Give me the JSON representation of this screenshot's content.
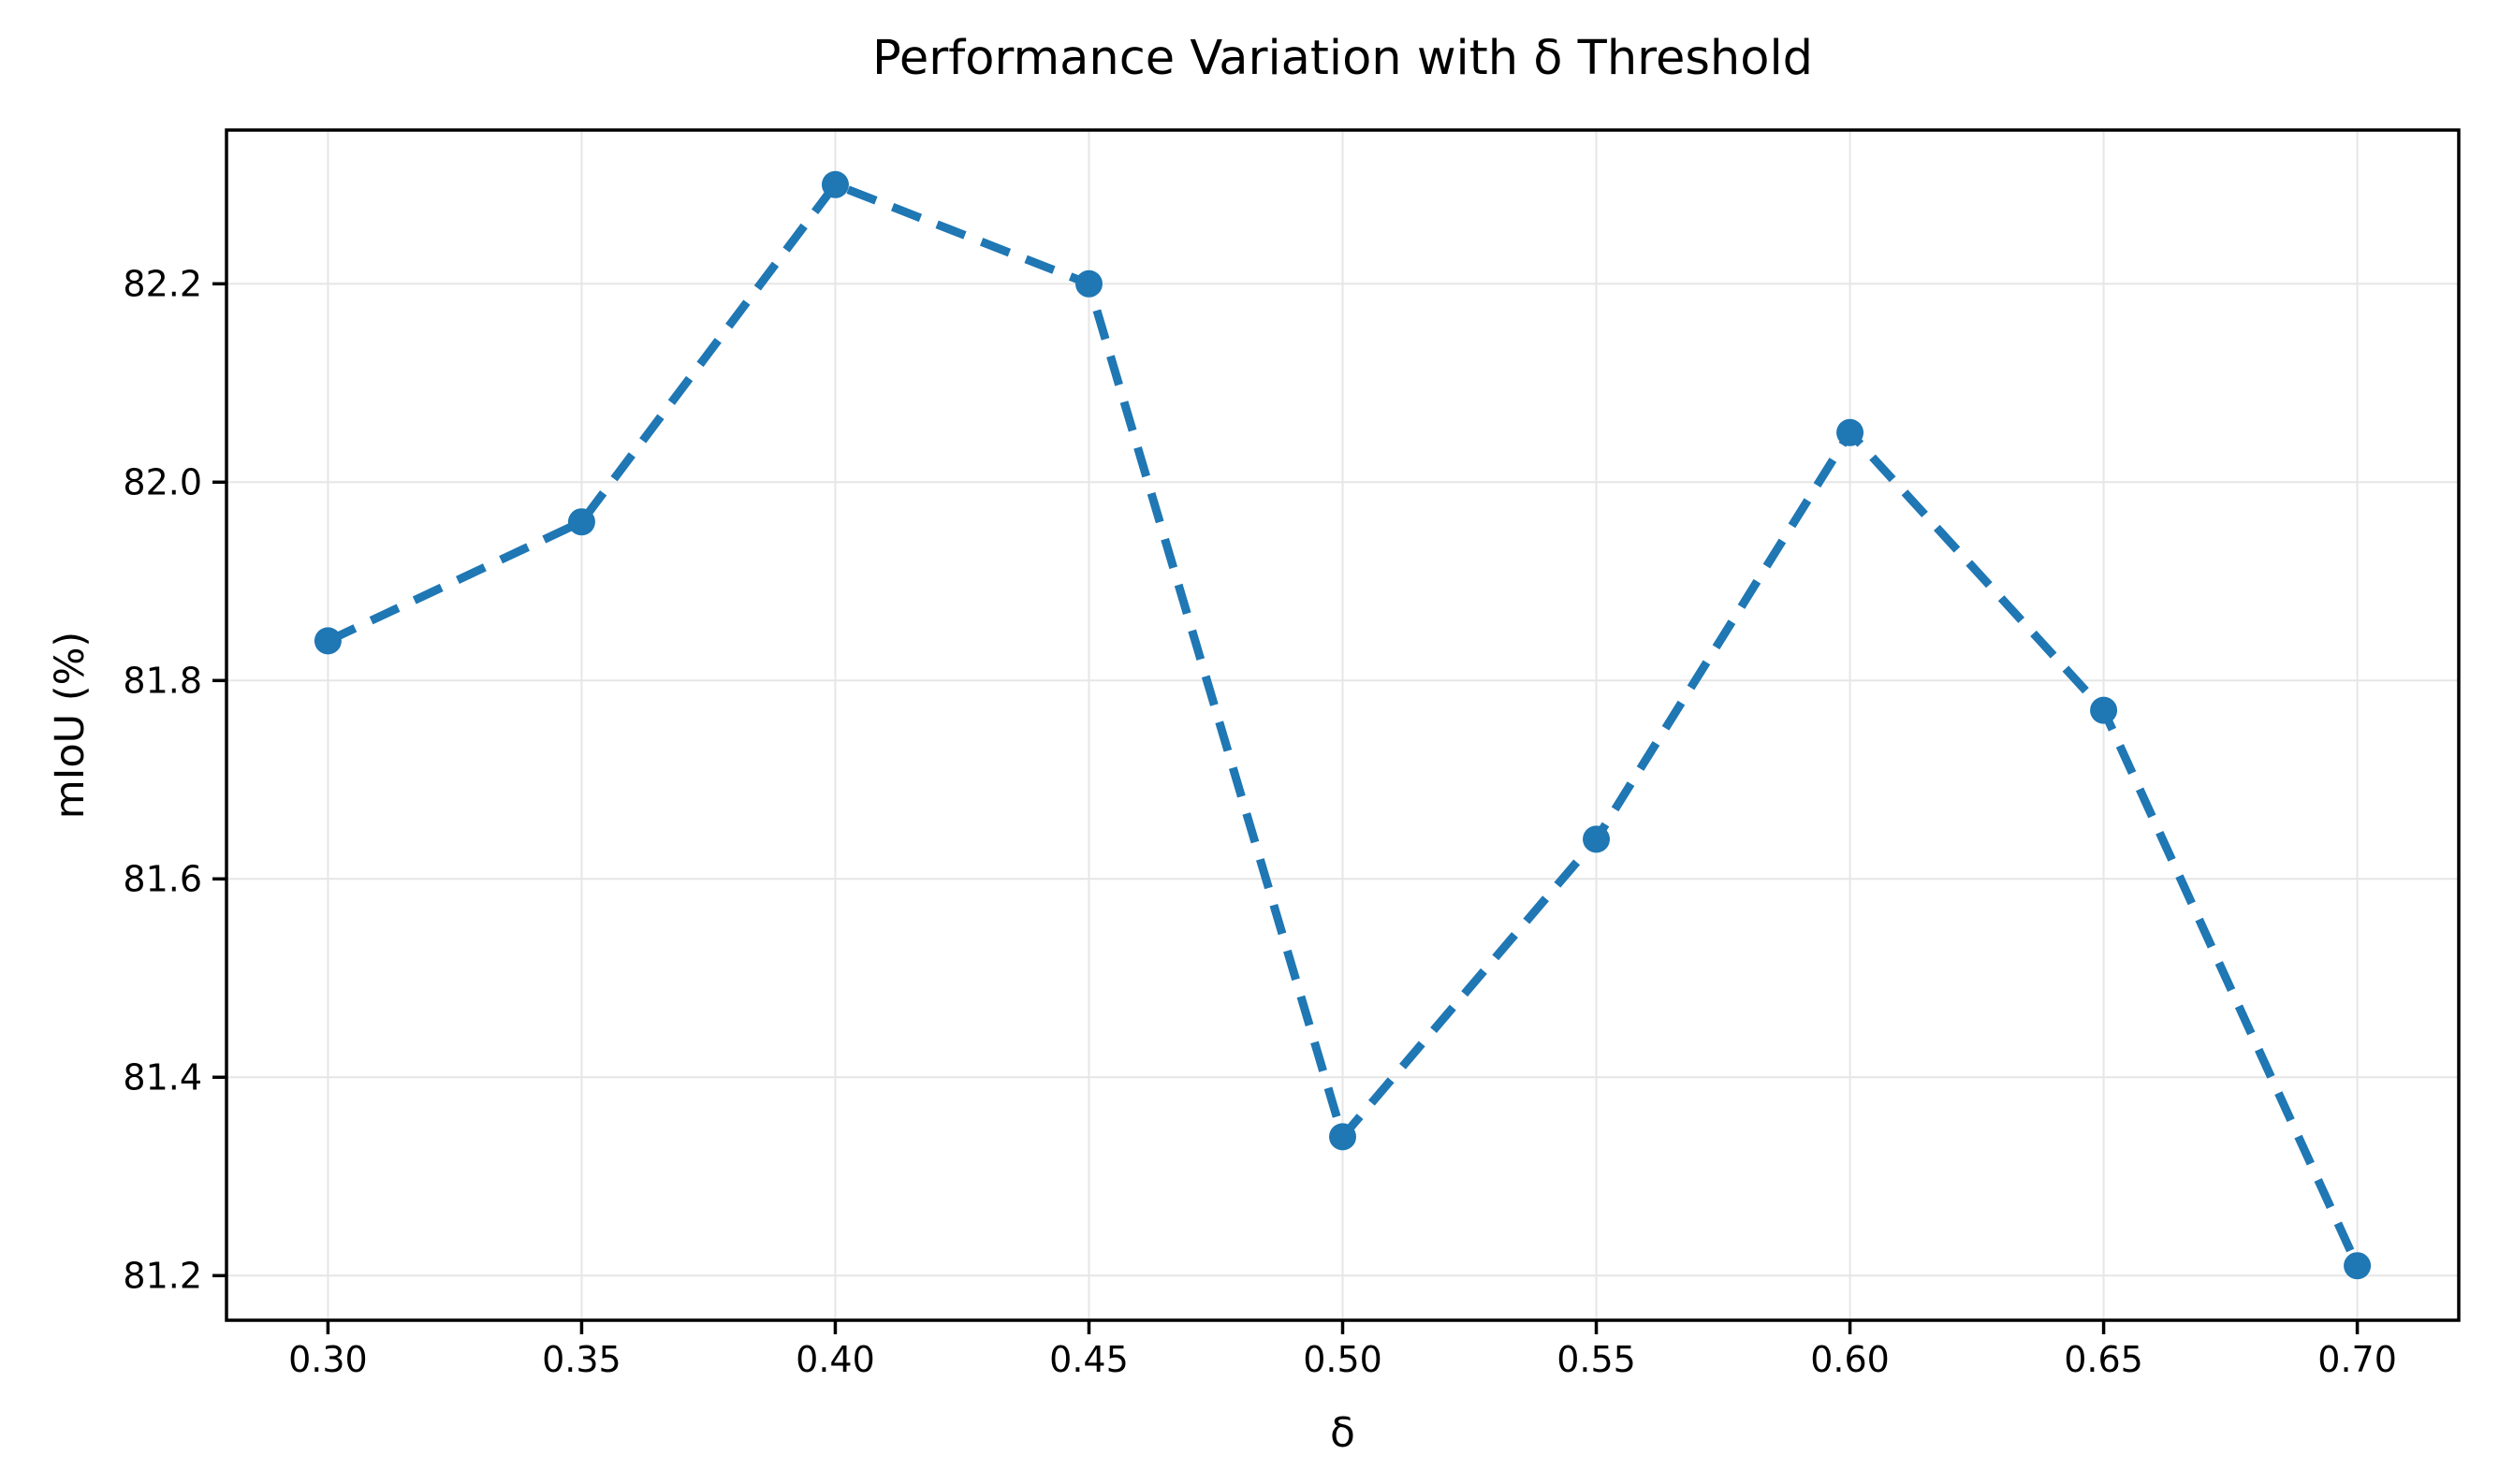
{
  "chart_data": {
    "type": "line",
    "title": "Performance Variation with δ Threshold",
    "xlabel": "δ",
    "ylabel": "mIoU (%)",
    "x": [
      0.3,
      0.35,
      0.4,
      0.45,
      0.5,
      0.55,
      0.6,
      0.65,
      0.7
    ],
    "series": [
      {
        "name": "mIoU",
        "values": [
          81.84,
          81.96,
          82.3,
          82.2,
          81.34,
          81.64,
          82.05,
          81.77,
          81.21
        ]
      }
    ],
    "xlim": [
      0.28,
      0.72
    ],
    "ylim": [
      81.155,
      82.355
    ],
    "xtick_values": [
      0.3,
      0.35,
      0.4,
      0.45,
      0.5,
      0.55,
      0.6,
      0.65,
      0.7
    ],
    "xtick_labels": [
      "0.30",
      "0.35",
      "0.40",
      "0.45",
      "0.50",
      "0.55",
      "0.60",
      "0.65",
      "0.70"
    ],
    "ytick_values": [
      81.2,
      81.4,
      81.6,
      81.8,
      82.0,
      82.2
    ],
    "ytick_labels": [
      "81.2",
      "81.4",
      "81.6",
      "81.8",
      "82.0",
      "82.2"
    ],
    "grid": true,
    "legend_position": "none",
    "line_style": "dashed",
    "marker": "circle",
    "colors": {
      "line": "#1f77b4",
      "marker": "#1f77b4",
      "grid": "#e6e6e6",
      "axis": "#000000",
      "text": "#000000",
      "background": "#ffffff"
    }
  }
}
